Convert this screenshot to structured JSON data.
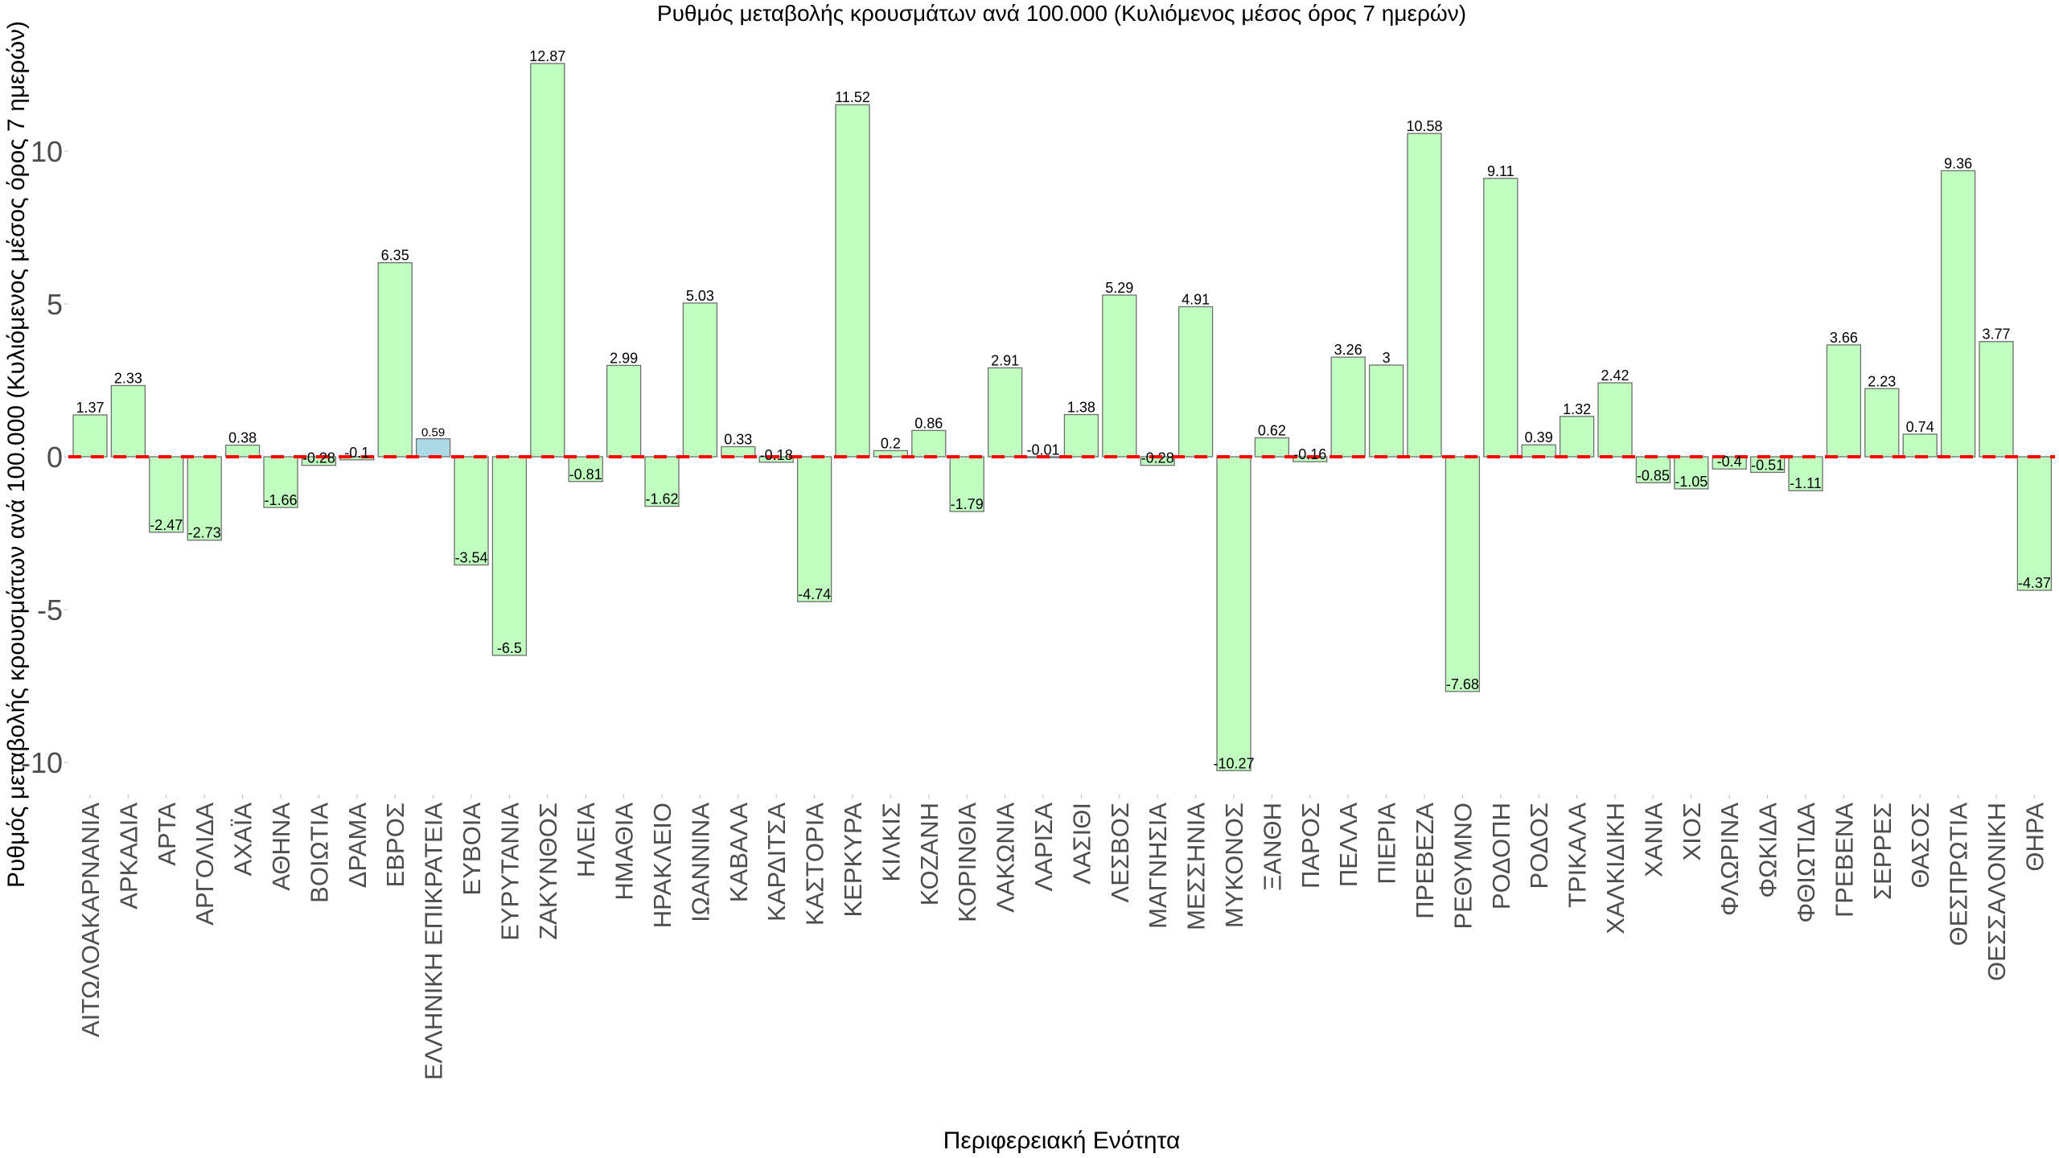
{
  "chart_data": {
    "type": "bar",
    "title": "Ρυθμός μεταβολής κρουσμάτων ανά 100.000 (Κυλιόμενος μέσος όρος 7 ημερών)",
    "xlabel": "Περιφερειακή Ενότητα",
    "ylabel": "Ρυθμός μεταβολής κρουσμάτων ανά 100.000 (Κυλιόμενος μέσος όρος 7 ημερών)",
    "ylim": [
      -10.6,
      13.5
    ],
    "yticks": [
      -10,
      -5,
      0,
      5,
      10
    ],
    "ytick_labels": [
      "-10",
      "-5",
      "0",
      "5",
      "10"
    ],
    "grid": false,
    "reference_line": {
      "value": 0,
      "style": "dashed",
      "color": "#ff0000"
    },
    "colors": {
      "default": "#c1ffc1",
      "highlight": "#add8e6",
      "outline": "#6e6e6e"
    },
    "highlight_category": "ΕΛΛΗΝΙΚΗ ΕΠΙΚΡΑΤΕΙΑ",
    "categories": [
      "ΑΙΤΩΛΟΑΚΑΡΝΑΝΙΑ",
      "ΑΡΚΑΔΙΑ",
      "ΑΡΤΑ",
      "ΑΡΓΟΛΙΔΑ",
      "ΑΧΑΪΑ",
      "ΑΘΗΝΑ",
      "ΒΟΙΩΤΙΑ",
      "ΔΡΑΜΑ",
      "ΕΒΡΟΣ",
      "ΕΛΛΗΝΙΚΗ ΕΠΙΚΡΑΤΕΙΑ",
      "ΕΥΒΟΙΑ",
      "ΕΥΡΥΤΑΝΙΑ",
      "ΖΑΚΥΝΘΟΣ",
      "ΗΛΕΙΑ",
      "ΗΜΑΘΙΑ",
      "ΗΡΑΚΛΕΙΟ",
      "ΙΩΑΝΝΙΝΑ",
      "ΚΑΒΑΛΑ",
      "ΚΑΡΔΙΤΣΑ",
      "ΚΑΣΤΟΡΙΑ",
      "ΚΕΡΚΥΡΑ",
      "ΚΙΛΚΙΣ",
      "ΚΟΖΑΝΗ",
      "ΚΟΡΙΝΘΙΑ",
      "ΛΑΚΩΝΙΑ",
      "ΛΑΡΙΣΑ",
      "ΛΑΣΙΘΙ",
      "ΛΕΣΒΟΣ",
      "ΜΑΓΝΗΣΙΑ",
      "ΜΕΣΣΗΝΙΑ",
      "ΜΥΚΟΝΟΣ",
      "ΞΑΝΘΗ",
      "ΠΑΡΟΣ",
      "ΠΕΛΛΑ",
      "ΠΙΕΡΙΑ",
      "ΠΡΕΒΕΖΑ",
      "ΡΕΘΥΜΝΟ",
      "ΡΟΔΟΠΗ",
      "ΡΟΔΟΣ",
      "ΤΡΙΚΑΛΑ",
      "ΧΑΛΚΙΔΙΚΗ",
      "ΧΑΝΙΑ",
      "ΧΙΟΣ",
      "ΦΛΩΡΙΝΑ",
      "ΦΩΚΙΔΑ",
      "ΦΘΙΩΤΙΔΑ",
      "ΓΡΕΒΕΝΑ",
      "ΣΕΡΡΕΣ",
      "ΘΑΣΟΣ",
      "ΘΕΣΠΡΩΤΙΑ",
      "ΘΕΣΣΑΛΟΝΙΚΗ",
      "ΘΗΡΑ"
    ],
    "values": [
      1.37,
      2.33,
      -2.47,
      -2.73,
      0.38,
      -1.66,
      -0.28,
      -0.1,
      6.35,
      0.59,
      -3.54,
      -6.5,
      12.87,
      -0.81,
      2.99,
      -1.62,
      5.03,
      0.33,
      -0.18,
      -4.74,
      11.52,
      0.2,
      0.86,
      -1.79,
      2.91,
      -0.01,
      1.38,
      5.29,
      -0.28,
      4.91,
      -10.27,
      0.62,
      -0.16,
      3.26,
      3,
      10.58,
      -7.68,
      9.11,
      0.39,
      1.32,
      2.42,
      -0.85,
      -1.05,
      -0.4,
      -0.51,
      -1.11,
      3.66,
      2.23,
      0.74,
      9.36,
      3.77,
      -4.37
    ]
  }
}
